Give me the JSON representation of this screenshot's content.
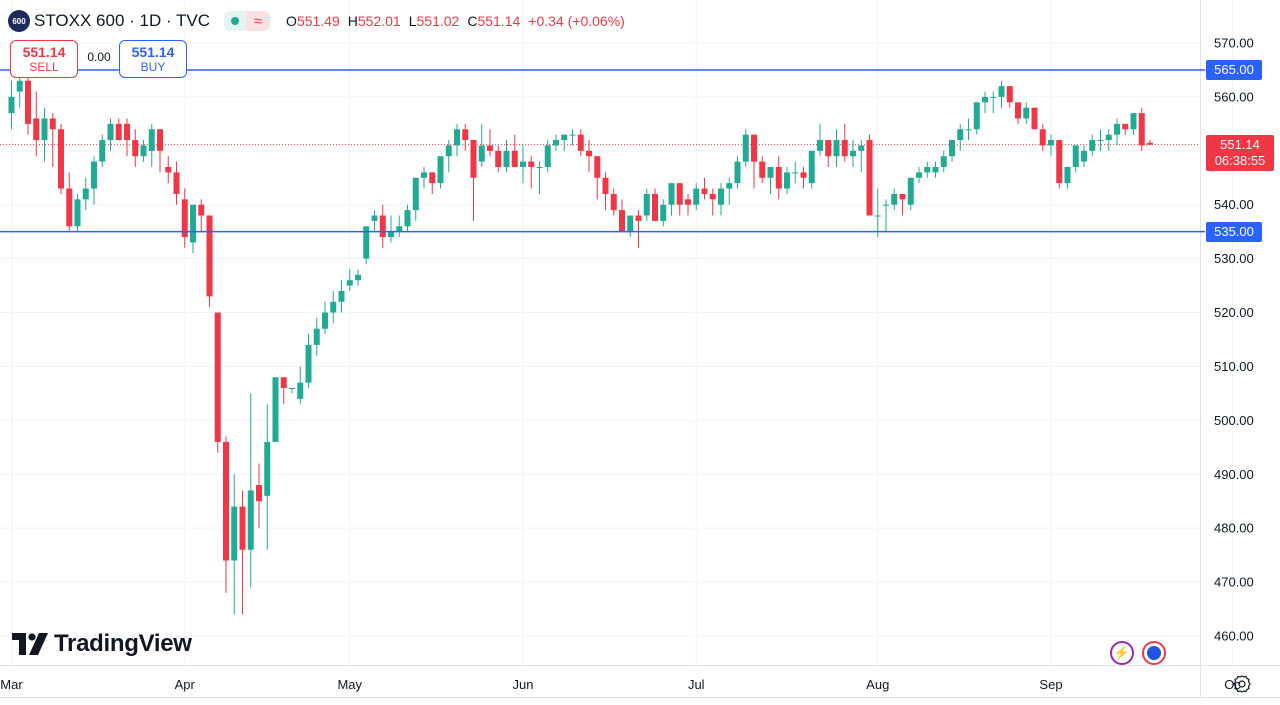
{
  "legend": {
    "badge": "600",
    "symbol": "STOXX 600 · 1D · TVC",
    "o_label": "O",
    "o": "551.49",
    "h_label": "H",
    "h": "552.01",
    "l_label": "L",
    "l": "551.02",
    "c_label": "C",
    "c": "551.14",
    "change": "+0.34 (+0.06%)",
    "wave_glyph": "≈"
  },
  "trade": {
    "sell_price": "551.14",
    "sell_label": "SELL",
    "spread": "0.00",
    "buy_price": "551.14",
    "buy_label": "BUY"
  },
  "branding": {
    "logo_text": "TradingView"
  },
  "price_scale": {
    "last_price": "551.14",
    "countdown": "06:38:55",
    "lines": [
      {
        "label": "565.00",
        "value": 565
      },
      {
        "label": "535.00",
        "value": 535
      }
    ]
  },
  "colors": {
    "up": "#22ab94",
    "down": "#f23645",
    "hline": "#2962ff",
    "grid": "#f0f3fa",
    "text": "#131722"
  },
  "icons": [
    "bolt-icon",
    "globe-icon",
    "gear-icon"
  ],
  "chart_data": {
    "type": "candlestick",
    "ylim": [
      457.5,
      575.5
    ],
    "yticks": [
      460,
      470,
      480,
      490,
      500,
      510,
      520,
      530,
      540,
      550,
      560,
      570
    ],
    "ytick_labels": [
      "460.00",
      "470.00",
      "480.00",
      "490.00",
      "500.00",
      "510.00",
      "520.00",
      "530.00",
      "540.00",
      "550.00",
      "560.00",
      "570.00"
    ],
    "xticks": [
      {
        "label": "Mar",
        "index": 0
      },
      {
        "label": "Apr",
        "index": 21
      },
      {
        "label": "May",
        "index": 41
      },
      {
        "label": "Jun",
        "index": 62
      },
      {
        "label": "Jul",
        "index": 83
      },
      {
        "label": "Aug",
        "index": 105
      },
      {
        "label": "Sep",
        "index": 126
      },
      {
        "label": "Oc",
        "index": 148
      }
    ],
    "grid": true,
    "horizontal_lines": [
      565,
      535
    ],
    "last_price": 551.14,
    "candles": [
      [
        0,
        557,
        563,
        554,
        560
      ],
      [
        1,
        561,
        564,
        558,
        563
      ],
      [
        2,
        563,
        565,
        553,
        555
      ],
      [
        3,
        556,
        561,
        549,
        552
      ],
      [
        4,
        552,
        558,
        548,
        556
      ],
      [
        5,
        556,
        557,
        547,
        554
      ],
      [
        6,
        554,
        555,
        542,
        543
      ],
      [
        7,
        543,
        546,
        535,
        536
      ],
      [
        8,
        536,
        542,
        535,
        541
      ],
      [
        9,
        541,
        545,
        539,
        543
      ],
      [
        10,
        543,
        549,
        540,
        548
      ],
      [
        11,
        548,
        553,
        547,
        552
      ],
      [
        12,
        552,
        556,
        550,
        555
      ],
      [
        13,
        555,
        556,
        552,
        552
      ],
      [
        14,
        555,
        556,
        549,
        552
      ],
      [
        15,
        552,
        554,
        547,
        549
      ],
      [
        16,
        549,
        552,
        548,
        551
      ],
      [
        17,
        550,
        555,
        547,
        554
      ],
      [
        18,
        554,
        554,
        546,
        550
      ],
      [
        19,
        547,
        549,
        544,
        546
      ],
      [
        20,
        546,
        548,
        540,
        542
      ],
      [
        21,
        541,
        543,
        532,
        534
      ],
      [
        22,
        533,
        540,
        531,
        540
      ],
      [
        23,
        540,
        541,
        535,
        538
      ],
      [
        24,
        538,
        538,
        521,
        523
      ],
      [
        25,
        520,
        520,
        494,
        496
      ],
      [
        26,
        496,
        497,
        468,
        474
      ],
      [
        27,
        474,
        490,
        464,
        484
      ],
      [
        28,
        484,
        487,
        464,
        476
      ],
      [
        29,
        476,
        505,
        469,
        487
      ],
      [
        30,
        488,
        492,
        480,
        485
      ],
      [
        31,
        486,
        503,
        476,
        496
      ],
      [
        32,
        496,
        507,
        496,
        508
      ],
      [
        33,
        508,
        508,
        503,
        506
      ],
      [
        34,
        506,
        506,
        505,
        506
      ],
      [
        35,
        504,
        510,
        503,
        507
      ],
      [
        36,
        507,
        516,
        506,
        514
      ],
      [
        37,
        514,
        519,
        512,
        517
      ],
      [
        38,
        517,
        522,
        516,
        520
      ],
      [
        39,
        520,
        524,
        518,
        522
      ],
      [
        40,
        522,
        526,
        520,
        524
      ],
      [
        41,
        525,
        528,
        524,
        526
      ],
      [
        42,
        526,
        528,
        525,
        527
      ],
      [
        43,
        530,
        536,
        529,
        536
      ],
      [
        44,
        537,
        539,
        535,
        538
      ],
      [
        45,
        538,
        540,
        532,
        534
      ],
      [
        46,
        534,
        538,
        533,
        535
      ],
      [
        47,
        535,
        538,
        534,
        536
      ],
      [
        48,
        536,
        540,
        535,
        539
      ],
      [
        49,
        539,
        545,
        537,
        545
      ],
      [
        50,
        545,
        547,
        543,
        546
      ],
      [
        51,
        546,
        546,
        542,
        544
      ],
      [
        52,
        544,
        549,
        543,
        549
      ],
      [
        53,
        549,
        552,
        546,
        551
      ],
      [
        54,
        551,
        555,
        549,
        554
      ],
      [
        55,
        554,
        555,
        550,
        552
      ],
      [
        56,
        552,
        552,
        537,
        545
      ],
      [
        57,
        548,
        555,
        547,
        551
      ],
      [
        58,
        551,
        554,
        549,
        550
      ],
      [
        59,
        550,
        551,
        546,
        547
      ],
      [
        60,
        547,
        552,
        546,
        550
      ],
      [
        61,
        550,
        553,
        547,
        547
      ],
      [
        62,
        547,
        551,
        544,
        548
      ],
      [
        63,
        548,
        549,
        543,
        547
      ],
      [
        64,
        547,
        548,
        542,
        547
      ],
      [
        65,
        547,
        552,
        546,
        551
      ],
      [
        66,
        551,
        553,
        550,
        552
      ],
      [
        67,
        552,
        553,
        550,
        553
      ],
      [
        68,
        553,
        554,
        551,
        553
      ],
      [
        69,
        553,
        554,
        549,
        550
      ],
      [
        70,
        550,
        552,
        546,
        549
      ],
      [
        71,
        549,
        549,
        541,
        545
      ],
      [
        72,
        545,
        546,
        539,
        542
      ],
      [
        73,
        542,
        543,
        538,
        539
      ],
      [
        74,
        539,
        541,
        535,
        535
      ],
      [
        75,
        535,
        538,
        534,
        538
      ],
      [
        76,
        538,
        539,
        532,
        537
      ],
      [
        77,
        538,
        543,
        537,
        542
      ],
      [
        78,
        542,
        543,
        537,
        537
      ],
      [
        79,
        537,
        541,
        536,
        540
      ],
      [
        80,
        540,
        544,
        538,
        544
      ],
      [
        81,
        544,
        544,
        538,
        540
      ],
      [
        82,
        541,
        542,
        538,
        540
      ],
      [
        83,
        540,
        544,
        539,
        543
      ],
      [
        84,
        543,
        545,
        541,
        542
      ],
      [
        85,
        542,
        543,
        538,
        541
      ],
      [
        86,
        540,
        544,
        538,
        543
      ],
      [
        87,
        543,
        545,
        540,
        544
      ],
      [
        88,
        544,
        549,
        543,
        548
      ],
      [
        89,
        548,
        554,
        547,
        553
      ],
      [
        90,
        553,
        553,
        543,
        548
      ],
      [
        91,
        548,
        549,
        544,
        545
      ],
      [
        92,
        545,
        547,
        542,
        547
      ],
      [
        93,
        547,
        549,
        541,
        543
      ],
      [
        94,
        543,
        547,
        542,
        546
      ],
      [
        95,
        546,
        548,
        544,
        546
      ],
      [
        96,
        546,
        547,
        543,
        545
      ],
      [
        97,
        544,
        550,
        543,
        550
      ],
      [
        98,
        550,
        555,
        549,
        552
      ],
      [
        99,
        552,
        552,
        547,
        549
      ],
      [
        100,
        549,
        554,
        547,
        552
      ],
      [
        101,
        552,
        555,
        548,
        549
      ],
      [
        102,
        549,
        552,
        547,
        550
      ],
      [
        103,
        550,
        552,
        546,
        551
      ],
      [
        104,
        552,
        553,
        538,
        538
      ],
      [
        105,
        538,
        543,
        534,
        538
      ],
      [
        106,
        540,
        541,
        535,
        540
      ],
      [
        107,
        540,
        543,
        539,
        542
      ],
      [
        108,
        542,
        542,
        538,
        541
      ],
      [
        109,
        540,
        545,
        539,
        545
      ],
      [
        110,
        545,
        547,
        544,
        546
      ],
      [
        111,
        546,
        548,
        545,
        547
      ],
      [
        112,
        546,
        548,
        545,
        547
      ],
      [
        113,
        547,
        550,
        546,
        549
      ],
      [
        114,
        549,
        552,
        548,
        552
      ],
      [
        115,
        552,
        555,
        550,
        554
      ],
      [
        116,
        554,
        556,
        552,
        554
      ],
      [
        117,
        554,
        559,
        553,
        559
      ],
      [
        118,
        559,
        561,
        557,
        560
      ],
      [
        119,
        560,
        561,
        557,
        560
      ],
      [
        120,
        560,
        563,
        558,
        562
      ],
      [
        121,
        562,
        562,
        558,
        559
      ],
      [
        122,
        559,
        559,
        555,
        556
      ],
      [
        123,
        556,
        559,
        555,
        558
      ],
      [
        124,
        558,
        558,
        554,
        554
      ],
      [
        125,
        554,
        555,
        550,
        551
      ],
      [
        126,
        551,
        553,
        549,
        552
      ],
      [
        127,
        552,
        552,
        543,
        544
      ],
      [
        128,
        544,
        547,
        543,
        547
      ],
      [
        129,
        547,
        551,
        546,
        551
      ],
      [
        130,
        548,
        551,
        547,
        550
      ],
      [
        131,
        550,
        553,
        549,
        552
      ],
      [
        132,
        552,
        554,
        550,
        552
      ],
      [
        133,
        552,
        554,
        550,
        553
      ],
      [
        134,
        553,
        556,
        551,
        555
      ],
      [
        135,
        555,
        555,
        553,
        554
      ],
      [
        136,
        554,
        557,
        553,
        557
      ],
      [
        137,
        557,
        558,
        550,
        551
      ],
      [
        138,
        551.49,
        552.01,
        551.02,
        551.14
      ]
    ]
  }
}
